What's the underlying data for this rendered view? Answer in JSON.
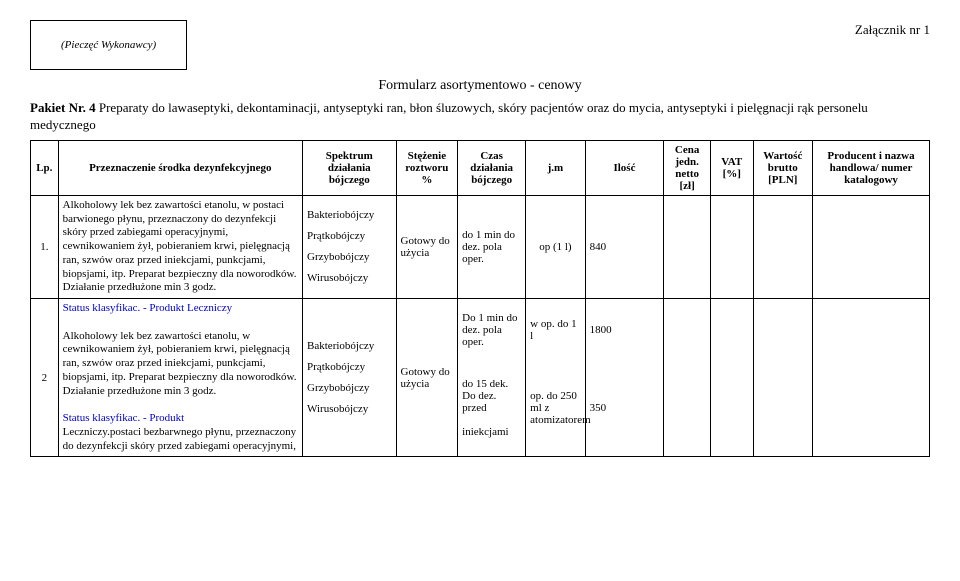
{
  "stamp": "(Pieczęć Wykonawcy)",
  "attachment": "Załącznik nr 1",
  "formTitle": "Formularz asortymentowo - cenowy",
  "packageLabel": "Pakiet Nr. 4",
  "packageText": "Preparaty do lawaseptyki, dekontaminacji, antyseptyki ran, błon śluzowych, skóry pacjentów oraz do mycia, antyseptyki i pielęgnacji rąk personelu medycznego",
  "headers": {
    "lp": "Lp.",
    "desc": "Przeznaczenie środka dezynfekcyjnego",
    "spectrum": "Spektrum działania bójczego",
    "stez": "Stężenie roztworu %",
    "czas": "Czas działania bójczego",
    "jm": "j.m",
    "ilosc": "Ilość",
    "cena": "Cena jedn. netto [zł]",
    "vat": "VAT [%]",
    "wart": "Wartość brutto [PLN]",
    "prod": "Producent i nazwa handlowa/ numer katalogowy"
  },
  "row1": {
    "lp": "1.",
    "desc": "Alkoholowy lek bez zawartości etanolu, w postaci barwionego płynu, przeznaczony do dezynfekcji skóry przed zabiegami operacyjnymi, cewnikowaniem żył, pobieraniem krwi, pielęgnacją ran, szwów oraz przed iniekcjami, punkcjami, biopsjami, itp. Preparat bezpieczny dla noworodków. Działanie przedłużone min 3 godz.",
    "spectrum1": "Bakteriobójczy",
    "spectrum2": "Prątkobójczy",
    "spectrum3": "Grzybobójczy",
    "spectrum4": "Wirusobójczy",
    "stez": "Gotowy do użycia",
    "czas": "do 1 min do dez. pola oper.",
    "jm": "op (1 l)",
    "ilosc": "840"
  },
  "row2status": "Status klasyfikac. - Produkt Leczniczy",
  "row2": {
    "lp": "2",
    "desc1": "Alkoholowy lek bez zawartości etanolu, w cewnikowaniem żył, pobieraniem krwi, pielęgnacją ran, szwów oraz przed iniekcjami, punkcjami, biopsjami, itp. Preparat bezpieczny dla noworodków. Działanie przedłużone min 3 godz.",
    "status": "Status klasyfikac. - Produkt",
    "desc2": "Leczniczy.postaci bezbarwnego płynu, przeznaczony do dezynfekcji skóry przed zabiegami operacyjnymi,",
    "spectrum1": "Bakteriobójczy",
    "spectrum2": "Prątkobójczy",
    "spectrum3": "Grzybobójczy",
    "spectrum4": "Wirusobójczy",
    "stez": "Gotowy do użycia",
    "czasA": "Do 1 min do dez. pola oper.",
    "czasB1": "do 15 dek.",
    "czasB2": "Do dez.",
    "czasB3": "przed",
    "czasB4": "iniekcjami",
    "jmA": "w op. do 1 l",
    "jmB": "op. do 250 ml z atomizatorem",
    "iloscA": "1800",
    "iloscB": "350"
  }
}
